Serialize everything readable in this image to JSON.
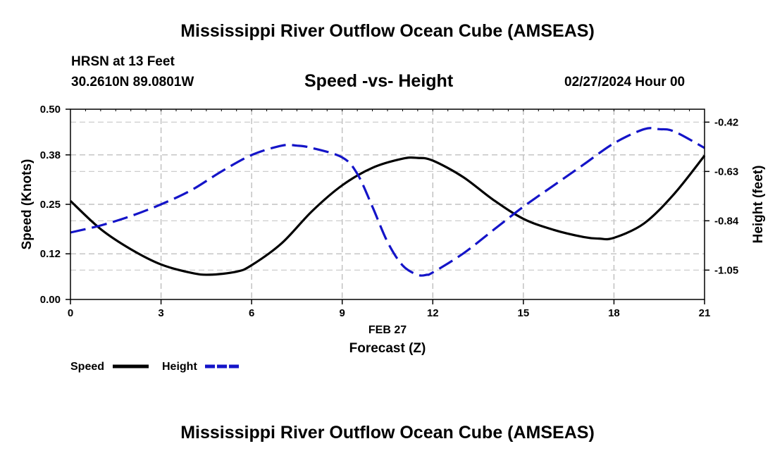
{
  "header": {
    "title": "Mississippi River Outflow Ocean Cube (AMSEAS)",
    "station": "HRSN at 13 Feet",
    "coords": "30.2610N  89.0801W",
    "subtitle": "Speed -vs- Height",
    "date": "02/27/2024 Hour 00"
  },
  "footer": {
    "title": "Mississippi River Outflow Ocean Cube (AMSEAS)"
  },
  "chart_data": {
    "type": "line",
    "title": "Speed -vs- Height",
    "xlabel": "Forecast (Z)",
    "xlabel_date": "FEB 27",
    "ylabel": "Speed (Knots)",
    "y2label": "Height (feet)",
    "xlim": [
      0,
      21
    ],
    "ylim": [
      0,
      0.5
    ],
    "y2lim": [
      -1.175,
      -0.365
    ],
    "x_ticks": [
      "0",
      "3",
      "6",
      "9",
      "12",
      "15",
      "18",
      "21"
    ],
    "y_ticks": [
      "0.00",
      "0.12",
      "0.25",
      "0.38",
      "0.50"
    ],
    "y2_ticks": [
      "-0.42",
      "-0.63",
      "-0.84",
      "-1.05"
    ],
    "grid": true,
    "series": [
      {
        "name": "Speed",
        "axis": "left",
        "color": "#000000",
        "style": "solid",
        "x": [
          0,
          1,
          2,
          3,
          4,
          4.6,
          5.5,
          6,
          7,
          8,
          9,
          10,
          11,
          11.5,
          12,
          13,
          14,
          15,
          16,
          17,
          17.5,
          18,
          19,
          20,
          21
        ],
        "values": [
          0.259,
          0.185,
          0.132,
          0.092,
          0.07,
          0.065,
          0.073,
          0.09,
          0.148,
          0.232,
          0.3,
          0.346,
          0.37,
          0.372,
          0.365,
          0.322,
          0.262,
          0.212,
          0.183,
          0.164,
          0.16,
          0.162,
          0.2,
          0.278,
          0.378
        ]
      },
      {
        "name": "Height",
        "axis": "right",
        "color": "#1414c8",
        "style": "dashed",
        "x": [
          0,
          1,
          2,
          3,
          4,
          5,
          6,
          7,
          7.5,
          8,
          9,
          9.5,
          10,
          10.5,
          11,
          11.5,
          11.8,
          12,
          13,
          14,
          15,
          16,
          17,
          18,
          19,
          19.5,
          20,
          21
        ],
        "values": [
          -0.89,
          -0.86,
          -0.82,
          -0.77,
          -0.71,
          -0.63,
          -0.56,
          -0.52,
          -0.52,
          -0.53,
          -0.57,
          -0.64,
          -0.78,
          -0.93,
          -1.03,
          -1.07,
          -1.07,
          -1.06,
          -0.98,
          -0.88,
          -0.78,
          -0.69,
          -0.6,
          -0.51,
          -0.45,
          -0.45,
          -0.46,
          -0.53
        ]
      }
    ],
    "legend": [
      {
        "label": "Speed",
        "color": "#000000",
        "style": "solid"
      },
      {
        "label": "Height",
        "color": "#1414c8",
        "style": "dashed"
      }
    ]
  }
}
